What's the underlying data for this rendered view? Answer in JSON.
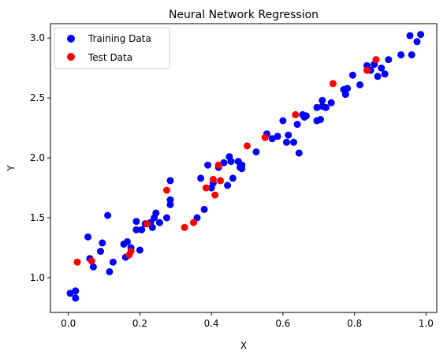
{
  "chart_data": {
    "type": "scatter",
    "title": "Neural Network Regression",
    "xlabel": "X",
    "ylabel": "Y",
    "xlim": [
      -0.05,
      1.03
    ],
    "ylim": [
      0.71,
      3.12
    ],
    "xticks": [
      0.0,
      0.2,
      0.4,
      0.6,
      0.8,
      1.0
    ],
    "xtick_labels": [
      "0.0",
      "0.2",
      "0.4",
      "0.6",
      "0.8",
      "1.0"
    ],
    "yticks": [
      1.0,
      1.5,
      2.0,
      2.5,
      3.0
    ],
    "ytick_labels": [
      "1.0",
      "1.5",
      "2.0",
      "2.5",
      "3.0"
    ],
    "grid": false,
    "legend_position": "top-left",
    "series": [
      {
        "name": "Training Data",
        "color": "#0000ff",
        "points": [
          [
            0.005,
            0.87
          ],
          [
            0.02,
            0.89
          ],
          [
            0.02,
            0.83
          ],
          [
            0.055,
            1.34
          ],
          [
            0.06,
            1.16
          ],
          [
            0.07,
            1.09
          ],
          [
            0.09,
            1.22
          ],
          [
            0.095,
            1.29
          ],
          [
            0.11,
            1.52
          ],
          [
            0.115,
            1.05
          ],
          [
            0.125,
            1.13
          ],
          [
            0.155,
            1.28
          ],
          [
            0.16,
            1.17
          ],
          [
            0.165,
            1.3
          ],
          [
            0.175,
            1.25
          ],
          [
            0.19,
            1.47
          ],
          [
            0.19,
            1.4
          ],
          [
            0.2,
            1.23
          ],
          [
            0.205,
            1.4
          ],
          [
            0.215,
            1.45
          ],
          [
            0.23,
            1.46
          ],
          [
            0.235,
            1.42
          ],
          [
            0.24,
            1.5
          ],
          [
            0.245,
            1.54
          ],
          [
            0.255,
            1.46
          ],
          [
            0.275,
            1.5
          ],
          [
            0.285,
            1.61
          ],
          [
            0.285,
            1.65
          ],
          [
            0.285,
            1.81
          ],
          [
            0.36,
            1.5
          ],
          [
            0.37,
            1.83
          ],
          [
            0.38,
            1.57
          ],
          [
            0.39,
            1.94
          ],
          [
            0.4,
            1.75
          ],
          [
            0.405,
            1.79
          ],
          [
            0.42,
            1.92
          ],
          [
            0.435,
            1.96
          ],
          [
            0.445,
            1.77
          ],
          [
            0.45,
            2.01
          ],
          [
            0.455,
            1.97
          ],
          [
            0.46,
            1.83
          ],
          [
            0.475,
            1.97
          ],
          [
            0.48,
            1.92
          ],
          [
            0.485,
            1.94
          ],
          [
            0.485,
            1.91
          ],
          [
            0.525,
            2.05
          ],
          [
            0.555,
            2.2
          ],
          [
            0.57,
            2.16
          ],
          [
            0.585,
            2.18
          ],
          [
            0.6,
            2.31
          ],
          [
            0.61,
            2.13
          ],
          [
            0.615,
            2.19
          ],
          [
            0.63,
            2.13
          ],
          [
            0.64,
            2.28
          ],
          [
            0.645,
            2.04
          ],
          [
            0.655,
            2.36
          ],
          [
            0.66,
            2.34
          ],
          [
            0.665,
            2.35
          ],
          [
            0.695,
            2.31
          ],
          [
            0.695,
            2.42
          ],
          [
            0.705,
            2.32
          ],
          [
            0.71,
            2.43
          ],
          [
            0.71,
            2.48
          ],
          [
            0.72,
            2.42
          ],
          [
            0.735,
            2.46
          ],
          [
            0.77,
            2.57
          ],
          [
            0.775,
            2.53
          ],
          [
            0.78,
            2.58
          ],
          [
            0.795,
            2.69
          ],
          [
            0.815,
            2.61
          ],
          [
            0.835,
            2.77
          ],
          [
            0.845,
            2.73
          ],
          [
            0.855,
            2.78
          ],
          [
            0.865,
            2.68
          ],
          [
            0.875,
            2.75
          ],
          [
            0.885,
            2.7
          ],
          [
            0.895,
            2.82
          ],
          [
            0.93,
            2.86
          ],
          [
            0.955,
            3.02
          ],
          [
            0.96,
            2.86
          ],
          [
            0.975,
            2.97
          ],
          [
            0.985,
            3.03
          ]
        ]
      },
      {
        "name": "Test Data",
        "color": "#ff0000",
        "points": [
          [
            0.025,
            1.13
          ],
          [
            0.065,
            1.14
          ],
          [
            0.17,
            1.19
          ],
          [
            0.175,
            1.22
          ],
          [
            0.22,
            1.45
          ],
          [
            0.275,
            1.73
          ],
          [
            0.325,
            1.42
          ],
          [
            0.35,
            1.46
          ],
          [
            0.385,
            1.75
          ],
          [
            0.405,
            1.82
          ],
          [
            0.41,
            1.69
          ],
          [
            0.42,
            1.94
          ],
          [
            0.425,
            1.81
          ],
          [
            0.5,
            2.1
          ],
          [
            0.55,
            2.17
          ],
          [
            0.635,
            2.36
          ],
          [
            0.74,
            2.62
          ],
          [
            0.835,
            2.73
          ],
          [
            0.86,
            2.82
          ]
        ]
      }
    ]
  }
}
